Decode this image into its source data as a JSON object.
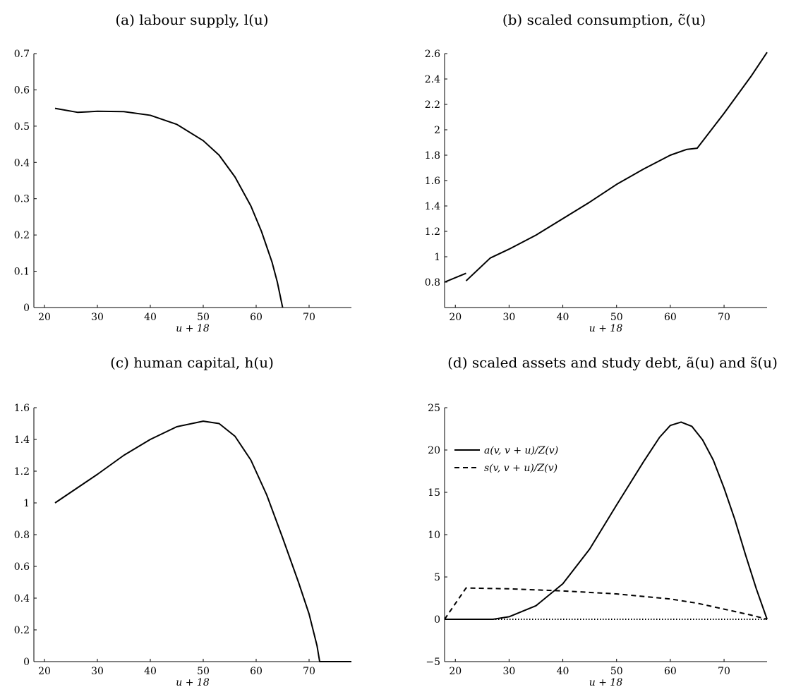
{
  "chart_data": [
    {
      "id": "a",
      "type": "line",
      "title": "(a) labour supply, l(u)",
      "xlabel": "u + 18",
      "ylabel": "",
      "xlim": [
        18,
        78
      ],
      "ylim": [
        0,
        0.7
      ],
      "xticks": [
        20,
        30,
        40,
        50,
        60,
        70
      ],
      "yticks": [
        0,
        0.1,
        0.2,
        0.3,
        0.4,
        0.5,
        0.6,
        0.7
      ],
      "xtick_labels": [
        "20",
        "30",
        "40",
        "50",
        "60",
        "70"
      ],
      "ytick_labels": [
        "0",
        "0.1",
        "0.2",
        "0.3",
        "0.4",
        "0.5",
        "0.6",
        "0.7"
      ],
      "series": [
        {
          "style": "solid",
          "segments": [
            [
              [
                22,
                0.549
              ],
              [
                26.3,
                0.538
              ],
              [
                30,
                0.541
              ],
              [
                35,
                0.54
              ],
              [
                40,
                0.53
              ],
              [
                45,
                0.505
              ],
              [
                50,
                0.46
              ],
              [
                53,
                0.42
              ],
              [
                56,
                0.36
              ],
              [
                59,
                0.28
              ],
              [
                61,
                0.21
              ],
              [
                63,
                0.125
              ],
              [
                64,
                0.07
              ],
              [
                65,
                0.0
              ]
            ]
          ]
        }
      ]
    },
    {
      "id": "b",
      "type": "line",
      "title": "(b) scaled consumption, c̃(u)",
      "xlabel": "u + 18",
      "ylabel": "",
      "xlim": [
        18,
        78
      ],
      "ylim": [
        0.6,
        2.6
      ],
      "xticks": [
        20,
        30,
        40,
        50,
        60,
        70
      ],
      "yticks": [
        0.8,
        1,
        1.2,
        1.4,
        1.6,
        1.8,
        2,
        2.2,
        2.4,
        2.6
      ],
      "xtick_labels": [
        "20",
        "30",
        "40",
        "50",
        "60",
        "70"
      ],
      "ytick_labels": [
        "0.8",
        "1",
        "1.2",
        "1.4",
        "1.6",
        "1.8",
        "2",
        "2.2",
        "2.4",
        "2.6"
      ],
      "series": [
        {
          "style": "solid",
          "segments": [
            [
              [
                18,
                0.8
              ],
              [
                22,
                0.87
              ]
            ],
            [
              [
                22,
                0.81
              ],
              [
                26.5,
                0.99
              ],
              [
                30,
                1.06
              ],
              [
                35,
                1.17
              ],
              [
                40,
                1.3
              ],
              [
                45,
                1.43
              ],
              [
                50,
                1.57
              ],
              [
                55,
                1.69
              ],
              [
                60,
                1.8
              ],
              [
                63,
                1.845
              ],
              [
                65,
                1.855
              ],
              [
                70,
                2.13
              ],
              [
                75,
                2.42
              ],
              [
                78,
                2.61
              ]
            ]
          ]
        }
      ]
    },
    {
      "id": "c",
      "type": "line",
      "title": "(c) human capital, h(u)",
      "xlabel": "u + 18",
      "ylabel": "",
      "xlim": [
        18,
        78
      ],
      "ylim": [
        0,
        1.6
      ],
      "xticks": [
        20,
        30,
        40,
        50,
        60,
        70
      ],
      "yticks": [
        0,
        0.2,
        0.4,
        0.6,
        0.8,
        1,
        1.2,
        1.4,
        1.6
      ],
      "xtick_labels": [
        "20",
        "30",
        "40",
        "50",
        "60",
        "70"
      ],
      "ytick_labels": [
        "0",
        "0.2",
        "0.4",
        "0.6",
        "0.8",
        "1",
        "1.2",
        "1.4",
        "1.6"
      ],
      "series": [
        {
          "style": "solid",
          "segments": [
            [
              [
                22,
                1.0
              ],
              [
                26,
                1.09
              ],
              [
                30,
                1.18
              ],
              [
                35,
                1.3
              ],
              [
                40,
                1.4
              ],
              [
                45,
                1.48
              ],
              [
                50,
                1.515
              ],
              [
                53,
                1.5
              ],
              [
                56,
                1.42
              ],
              [
                59,
                1.27
              ],
              [
                62,
                1.05
              ],
              [
                65,
                0.78
              ],
              [
                68,
                0.5
              ],
              [
                70,
                0.3
              ],
              [
                71.5,
                0.1
              ],
              [
                72,
                0.0
              ],
              [
                78,
                0.0
              ]
            ]
          ]
        }
      ]
    },
    {
      "id": "d",
      "type": "line",
      "title": "(d) scaled assets and study debt, ã(u) and s̃(u)",
      "xlabel": "u + 18",
      "ylabel": "",
      "xlim": [
        18,
        78
      ],
      "ylim": [
        -5,
        25
      ],
      "xticks": [
        20,
        30,
        40,
        50,
        60,
        70
      ],
      "yticks": [
        -5,
        0,
        5,
        10,
        15,
        20,
        25
      ],
      "xtick_labels": [
        "20",
        "30",
        "40",
        "50",
        "60",
        "70"
      ],
      "ytick_labels": [
        "−5",
        "0",
        "5",
        "10",
        "15",
        "20",
        "25"
      ],
      "legend": {
        "position": "top-left"
      },
      "series": [
        {
          "name": "a(v, v + u)/Z(v)",
          "style": "solid",
          "segments": [
            [
              [
                18,
                0.0
              ],
              [
                27,
                0.0
              ],
              [
                30,
                0.3
              ],
              [
                35,
                1.6
              ],
              [
                40,
                4.2
              ],
              [
                45,
                8.3
              ],
              [
                50,
                13.5
              ],
              [
                55,
                18.6
              ],
              [
                58,
                21.5
              ],
              [
                60,
                22.9
              ],
              [
                62,
                23.3
              ],
              [
                64,
                22.8
              ],
              [
                66,
                21.2
              ],
              [
                68,
                18.8
              ],
              [
                70,
                15.5
              ],
              [
                72,
                11.8
              ],
              [
                74,
                7.6
              ],
              [
                76,
                3.6
              ],
              [
                78,
                0.0
              ]
            ]
          ]
        },
        {
          "name": "s(v, v + u)/Z(v)",
          "style": "dashed",
          "segments": [
            [
              [
                18,
                0.0
              ],
              [
                22,
                3.7
              ],
              [
                30,
                3.6
              ],
              [
                40,
                3.35
              ],
              [
                50,
                3.0
              ],
              [
                60,
                2.4
              ],
              [
                65,
                1.9
              ],
              [
                70,
                1.2
              ],
              [
                75,
                0.5
              ],
              [
                78,
                0.0
              ]
            ]
          ]
        },
        {
          "style": "dotted",
          "segments": [
            [
              [
                18,
                0.0
              ],
              [
                78,
                0.0
              ]
            ]
          ]
        }
      ]
    }
  ]
}
